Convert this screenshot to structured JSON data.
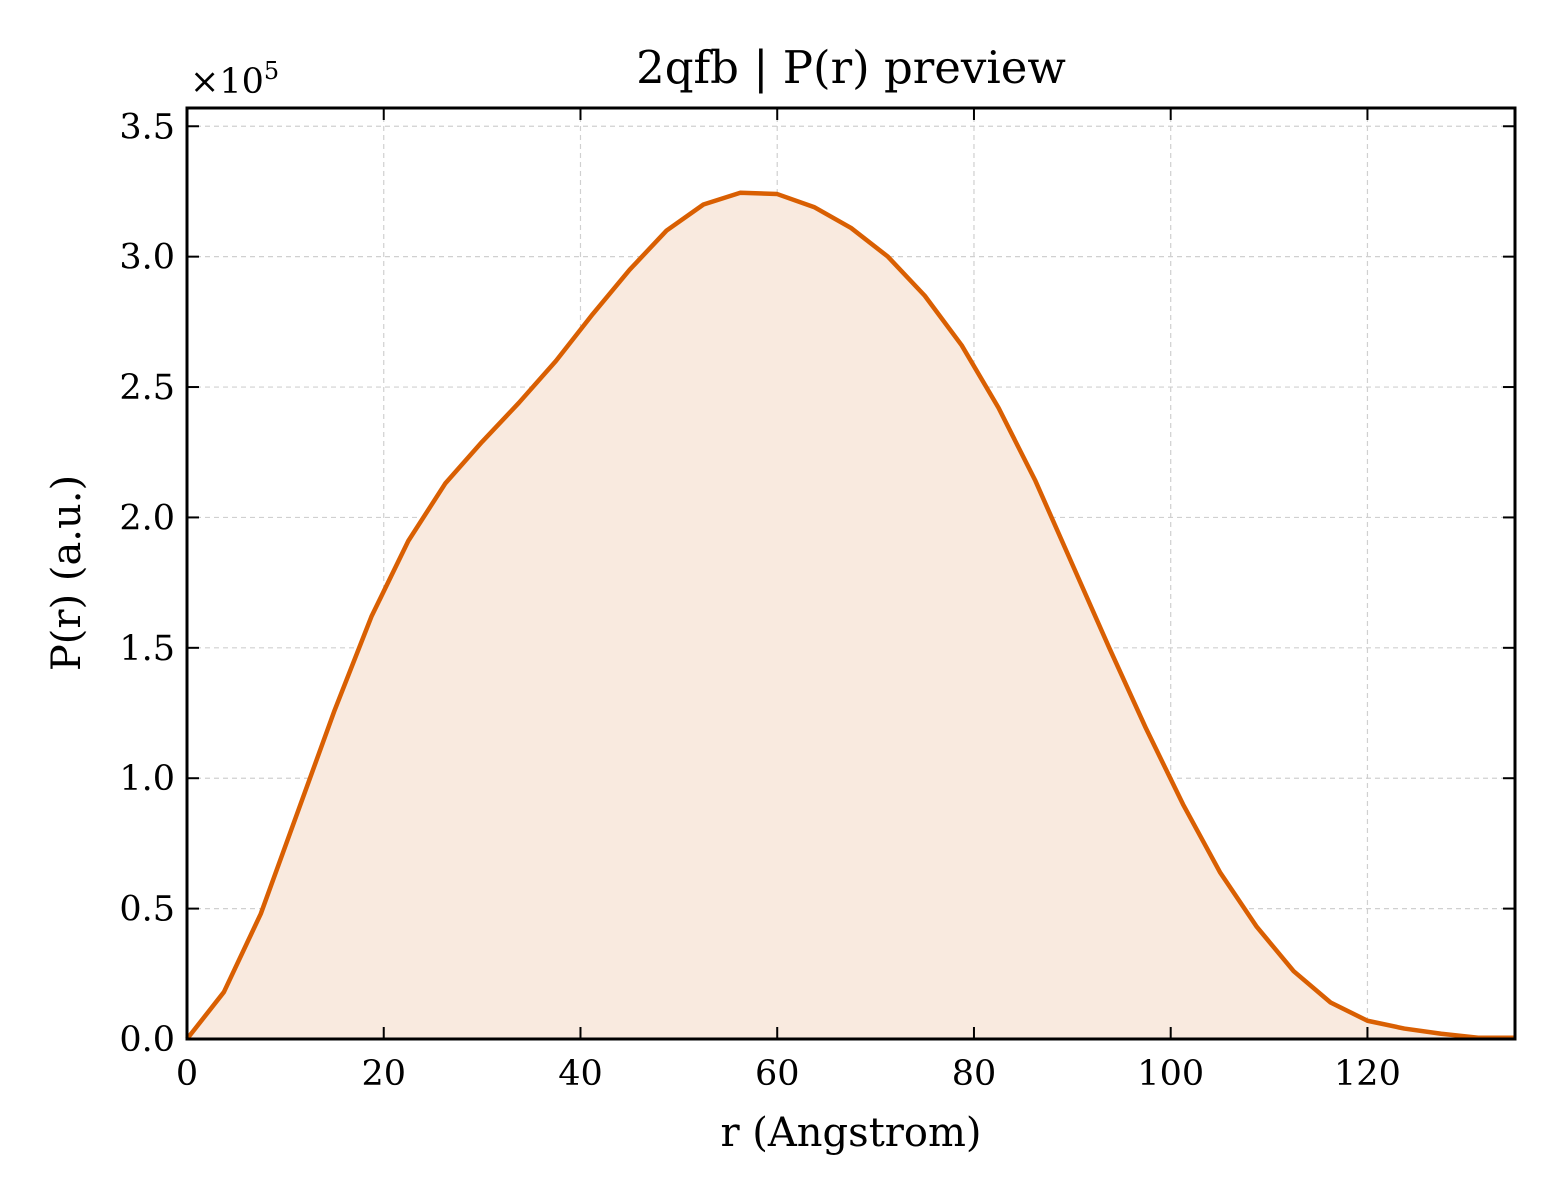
{
  "chart_data": {
    "type": "area",
    "title": "2qfb | P(r) preview",
    "xlabel": "r (Angstrom)",
    "ylabel": "P(r) (a.u.)",
    "y_multiplier_label": "×10",
    "y_multiplier_exponent": "5",
    "xlim": [
      0,
      135
    ],
    "ylim": [
      0,
      3.57
    ],
    "x_ticks": [
      0,
      20,
      40,
      60,
      80,
      100,
      120
    ],
    "x_tick_labels": [
      "0",
      "20",
      "40",
      "60",
      "80",
      "100",
      "120"
    ],
    "y_ticks": [
      0,
      0.5,
      1.0,
      1.5,
      2.0,
      2.5,
      3.0,
      3.5
    ],
    "y_tick_labels": [
      "0.0",
      "0.5",
      "1.0",
      "1.5",
      "2.0",
      "2.5",
      "3.0",
      "3.5"
    ],
    "grid": true,
    "line_color": "#d95f02",
    "fill_color": "#f9eadf",
    "series": [
      {
        "x": [
          0,
          3.75,
          7.5,
          11.25,
          15,
          18.75,
          22.5,
          26.25,
          30,
          33.75,
          37.5,
          41.25,
          45,
          48.75,
          52.5,
          56.25,
          60,
          63.75,
          67.5,
          71.25,
          75,
          78.75,
          82.5,
          86.25,
          90,
          93.75,
          97.5,
          101.25,
          105,
          108.75,
          112.5,
          116.25,
          120,
          123.75,
          127.5,
          131.25,
          135
        ],
        "y": [
          0.0,
          0.18,
          0.48,
          0.87,
          1.26,
          1.62,
          1.91,
          2.13,
          2.29,
          2.44,
          2.6,
          2.78,
          2.95,
          3.1,
          3.2,
          3.245,
          3.24,
          3.19,
          3.11,
          3.0,
          2.85,
          2.66,
          2.42,
          2.14,
          1.82,
          1.5,
          1.19,
          0.9,
          0.64,
          0.43,
          0.26,
          0.14,
          0.07,
          0.04,
          0.02,
          0.005,
          0.005
        ]
      }
    ]
  }
}
